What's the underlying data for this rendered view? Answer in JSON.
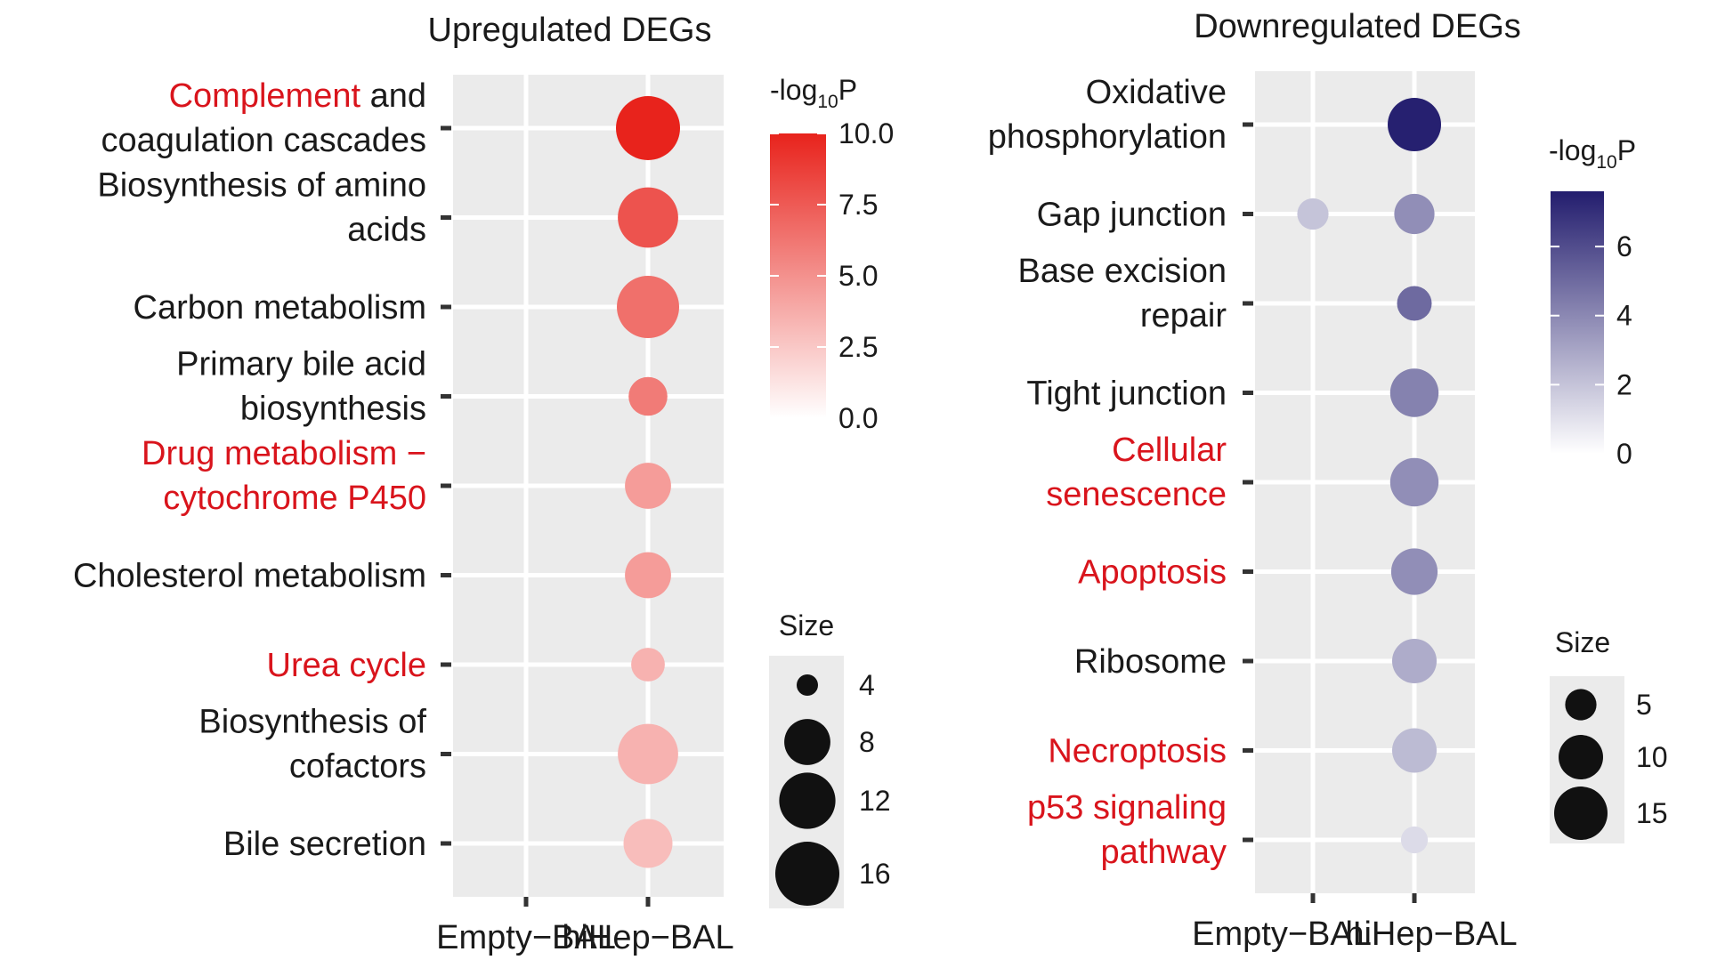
{
  "chart_data": [
    {
      "type": "scatter",
      "title": "Upregulated DEGs",
      "x_categories": [
        "Empty−BAL",
        "hiHep−BAL"
      ],
      "terms": [
        {
          "segments": [
            [
              {
                "text": "Complement",
                "highlight": true
              },
              {
                "text": " and",
                "highlight": false
              }
            ],
            [
              {
                "text": "coagulation cascades",
                "highlight": false
              }
            ]
          ]
        },
        {
          "segments": [
            [
              {
                "text": "Biosynthesis of amino",
                "highlight": false
              }
            ],
            [
              {
                "text": "acids",
                "highlight": false
              }
            ]
          ]
        },
        {
          "segments": [
            [
              {
                "text": "Carbon metabolism",
                "highlight": false
              }
            ]
          ]
        },
        {
          "segments": [
            [
              {
                "text": "Primary bile acid",
                "highlight": false
              }
            ],
            [
              {
                "text": "biosynthesis",
                "highlight": false
              }
            ]
          ]
        },
        {
          "segments": [
            [
              {
                "text": "Drug metabolism −",
                "highlight": true
              }
            ],
            [
              {
                "text": "cytochrome P450",
                "highlight": true
              }
            ]
          ]
        },
        {
          "segments": [
            [
              {
                "text": "Cholesterol metabolism",
                "highlight": false
              }
            ]
          ]
        },
        {
          "segments": [
            [
              {
                "text": "Urea cycle",
                "highlight": true
              }
            ]
          ]
        },
        {
          "segments": [
            [
              {
                "text": "Biosynthesis of",
                "highlight": false
              }
            ],
            [
              {
                "text": "cofactors",
                "highlight": false
              }
            ]
          ]
        },
        {
          "segments": [
            [
              {
                "text": "Bile secretion",
                "highlight": false
              }
            ]
          ]
        }
      ],
      "points": [
        {
          "term_index": 0,
          "x": "hiHep−BAL",
          "size": 16,
          "neg_log10_p": 10.0
        },
        {
          "term_index": 1,
          "x": "hiHep−BAL",
          "size": 14,
          "neg_log10_p": 7.8
        },
        {
          "term_index": 2,
          "x": "hiHep−BAL",
          "size": 15,
          "neg_log10_p": 6.5
        },
        {
          "term_index": 3,
          "x": "hiHep−BAL",
          "size": 6,
          "neg_log10_p": 6.0
        },
        {
          "term_index": 4,
          "x": "hiHep−BAL",
          "size": 8,
          "neg_log10_p": 4.5
        },
        {
          "term_index": 5,
          "x": "hiHep−BAL",
          "size": 8,
          "neg_log10_p": 4.5
        },
        {
          "term_index": 6,
          "x": "hiHep−BAL",
          "size": 5,
          "neg_log10_p": 3.5
        },
        {
          "term_index": 7,
          "x": "hiHep−BAL",
          "size": 14,
          "neg_log10_p": 3.5
        },
        {
          "term_index": 8,
          "x": "hiHep−BAL",
          "size": 9,
          "neg_log10_p": 3.0
        }
      ],
      "color_legend": {
        "title": "-log10P",
        "range": [
          0,
          10
        ],
        "ticks": [
          10.0,
          7.5,
          5.0,
          2.5,
          0.0
        ],
        "tick_labels": [
          "10.0",
          "7.5",
          "5.0",
          "2.5",
          "0.0"
        ],
        "low_color": "#ffffff",
        "high_color": "#e8231c"
      },
      "size_legend": {
        "title": "Size",
        "values": [
          4,
          8,
          12,
          16
        ],
        "labels": [
          "4",
          "8",
          "12",
          "16"
        ]
      },
      "size_range": [
        4,
        16
      ]
    },
    {
      "type": "scatter",
      "title": "Downregulated DEGs",
      "x_categories": [
        "Empty−BAL",
        "hiHep−BAL"
      ],
      "terms": [
        {
          "segments": [
            [
              {
                "text": "Oxidative",
                "highlight": false
              }
            ],
            [
              {
                "text": "phosphorylation",
                "highlight": false
              }
            ]
          ]
        },
        {
          "segments": [
            [
              {
                "text": "Gap junction",
                "highlight": false
              }
            ]
          ]
        },
        {
          "segments": [
            [
              {
                "text": "Base excision",
                "highlight": false
              }
            ],
            [
              {
                "text": "repair",
                "highlight": false
              }
            ]
          ]
        },
        {
          "segments": [
            [
              {
                "text": "Tight junction",
                "highlight": false
              }
            ]
          ]
        },
        {
          "segments": [
            [
              {
                "text": "Cellular",
                "highlight": true
              }
            ],
            [
              {
                "text": "senescence",
                "highlight": true
              }
            ]
          ]
        },
        {
          "segments": [
            [
              {
                "text": "Apoptosis",
                "highlight": true
              }
            ]
          ]
        },
        {
          "segments": [
            [
              {
                "text": "Ribosome",
                "highlight": false
              }
            ]
          ]
        },
        {
          "segments": [
            [
              {
                "text": "Necroptosis",
                "highlight": true
              }
            ]
          ]
        },
        {
          "segments": [
            [
              {
                "text": "p53 signaling",
                "highlight": true
              }
            ],
            [
              {
                "text": "pathway",
                "highlight": true
              }
            ]
          ]
        }
      ],
      "points": [
        {
          "term_index": 0,
          "x": "hiHep−BAL",
          "size": 15,
          "neg_log10_p": 7.5
        },
        {
          "term_index": 1,
          "x": "Empty−BAL",
          "size": 5,
          "neg_log10_p": 2.0
        },
        {
          "term_index": 1,
          "x": "hiHep−BAL",
          "size": 8,
          "neg_log10_p": 3.8
        },
        {
          "term_index": 2,
          "x": "hiHep−BAL",
          "size": 6,
          "neg_log10_p": 5.0
        },
        {
          "term_index": 3,
          "x": "hiHep−BAL",
          "size": 12,
          "neg_log10_p": 4.2
        },
        {
          "term_index": 4,
          "x": "hiHep−BAL",
          "size": 12,
          "neg_log10_p": 3.8
        },
        {
          "term_index": 5,
          "x": "hiHep−BAL",
          "size": 11,
          "neg_log10_p": 3.8
        },
        {
          "term_index": 6,
          "x": "hiHep−BAL",
          "size": 10,
          "neg_log10_p": 2.8
        },
        {
          "term_index": 7,
          "x": "hiHep−BAL",
          "size": 10,
          "neg_log10_p": 2.3
        },
        {
          "term_index": 8,
          "x": "hiHep−BAL",
          "size": 4,
          "neg_log10_p": 1.2
        }
      ],
      "color_legend": {
        "title": "-log10P",
        "range": [
          0,
          7.6
        ],
        "ticks": [
          6,
          4,
          2,
          0
        ],
        "tick_labels": [
          "6",
          "4",
          "2",
          "0"
        ],
        "low_color": "#ffffff",
        "high_color": "#231d6e"
      },
      "size_legend": {
        "title": "Size",
        "values": [
          5,
          10,
          15
        ],
        "labels": [
          "5",
          "10",
          "15"
        ]
      },
      "size_range": [
        3,
        15
      ]
    }
  ],
  "colors": {
    "highlight_text": "#d9141c",
    "normal_text": "#1a1a1a",
    "panel_bg": "#ebebeb",
    "grid": "#ffffff",
    "size_key": "#111111"
  }
}
